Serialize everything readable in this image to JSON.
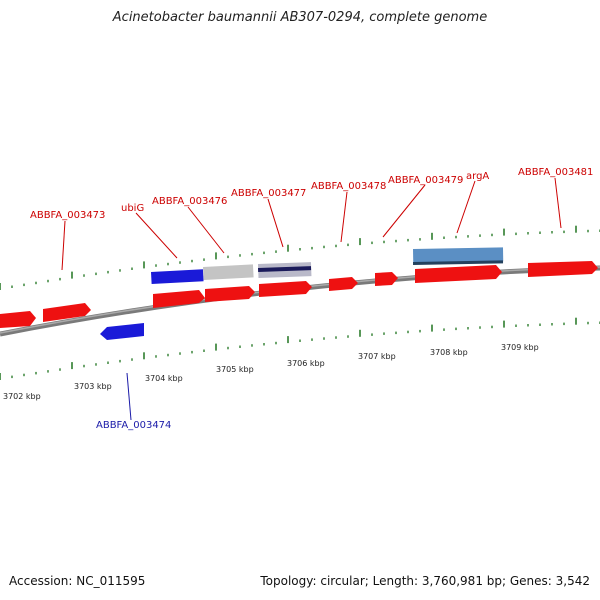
{
  "title": "Acinetobacter baumannii AB307-0294, complete genome",
  "footer": {
    "accession": "Accession: NC_011595",
    "summary": "Topology: circular; Length: 3,760,981 bp; Genes: 3,542"
  },
  "colors": {
    "forward_gene": "#ee1111",
    "reverse_gene": "#1a1ad8",
    "forward_label": "#cc0000",
    "reverse_label": "#1a1aa8",
    "tick": "#2e7d2e",
    "backbone": "#7a7a7a",
    "feature_blue": "#5b8fc4",
    "feature_gray": "#bdbdbd",
    "feature_navy": "#1a1a5a"
  },
  "scale_labels": [
    "3702 kbp",
    "3703 kbp",
    "3704 kbp",
    "3705 kbp",
    "3706 kbp",
    "3707 kbp",
    "3708 kbp",
    "3709 kbp"
  ],
  "gene_labels": {
    "ABBFA_003473": "ABBFA_003473",
    "ubiG": "ubiG",
    "ABBFA_003476": "ABBFA_003476",
    "ABBFA_003477": "ABBFA_003477",
    "ABBFA_003478": "ABBFA_003478",
    "ABBFA_003479": "ABBFA_003479",
    "argA": "argA",
    "ABBFA_003481": "ABBFA_003481",
    "ABBFA_003474": "ABBFA_003474"
  }
}
